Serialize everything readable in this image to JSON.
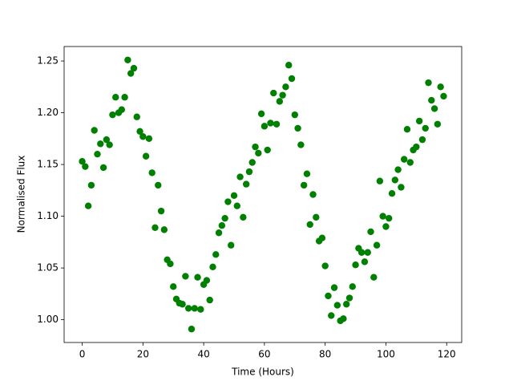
{
  "chart_data": {
    "type": "scatter",
    "xlabel": "Time (Hours)",
    "ylabel": "Normalised Flux",
    "color": "#008000",
    "x": [
      0,
      1,
      2,
      3,
      4,
      5,
      6,
      7,
      8,
      9,
      10,
      11,
      12,
      13,
      14,
      15,
      16,
      17,
      18,
      19,
      20,
      21,
      22,
      23,
      24,
      25,
      26,
      27,
      28,
      29,
      30,
      31,
      32,
      33,
      34,
      35,
      36,
      37,
      38,
      39,
      40,
      41,
      42,
      43,
      44,
      45,
      46,
      47,
      48,
      49,
      50,
      51,
      52,
      53,
      54,
      55,
      56,
      57,
      58,
      59,
      60,
      61,
      62,
      63,
      64,
      65,
      66,
      67,
      68,
      69,
      70,
      71,
      72,
      73,
      74,
      75,
      76,
      77,
      78,
      79,
      80,
      81,
      82,
      83,
      84,
      85,
      86,
      87,
      88,
      89,
      90,
      91,
      92,
      93,
      94,
      95,
      96,
      97,
      98,
      99,
      100,
      101,
      102,
      103,
      104,
      105,
      106,
      107,
      108,
      109,
      110,
      111,
      112,
      113,
      114,
      115,
      116,
      117,
      118,
      119
    ],
    "values": [
      1.153,
      1.148,
      1.11,
      1.13,
      1.183,
      1.16,
      1.17,
      1.147,
      1.174,
      1.169,
      1.198,
      1.215,
      1.2,
      1.203,
      1.215,
      1.251,
      1.238,
      1.243,
      1.196,
      1.182,
      1.177,
      1.158,
      1.175,
      1.142,
      1.089,
      1.13,
      1.105,
      1.087,
      1.058,
      1.054,
      1.032,
      1.02,
      1.016,
      1.015,
      1.042,
      1.011,
      0.991,
      1.011,
      1.041,
      1.01,
      1.034,
      1.038,
      1.019,
      1.051,
      1.063,
      1.084,
      1.091,
      1.098,
      1.114,
      1.072,
      1.12,
      1.11,
      1.138,
      1.099,
      1.131,
      1.143,
      1.152,
      1.167,
      1.161,
      1.199,
      1.187,
      1.164,
      1.19,
      1.219,
      1.189,
      1.211,
      1.217,
      1.225,
      1.246,
      1.233,
      1.198,
      1.185,
      1.169,
      1.13,
      1.141,
      1.092,
      1.121,
      1.099,
      1.076,
      1.079,
      1.052,
      1.023,
      1.004,
      1.031,
      1.014,
      0.999,
      1.001,
      1.015,
      1.021,
      1.032,
      1.053,
      1.069,
      1.065,
      1.056,
      1.065,
      1.085,
      1.041,
      1.072,
      1.134,
      1.1,
      1.09,
      1.098,
      1.122,
      1.135,
      1.145,
      1.128,
      1.155,
      1.184,
      1.152,
      1.164,
      1.167,
      1.192,
      1.174,
      1.185,
      1.229,
      1.212,
      1.204,
      1.189,
      1.225,
      1.216
    ],
    "xlim": [
      -5.95,
      124.95
    ],
    "ylim": [
      0.978,
      1.264
    ],
    "xticks": [
      0,
      20,
      40,
      60,
      80,
      100,
      120
    ],
    "yticks": [
      {
        "value": 1.0,
        "label": "1.00"
      },
      1.05,
      {
        "value": 1.1,
        "label": "1.10"
      },
      1.15,
      {
        "value": 1.2,
        "label": "1.20"
      },
      1.25
    ]
  }
}
